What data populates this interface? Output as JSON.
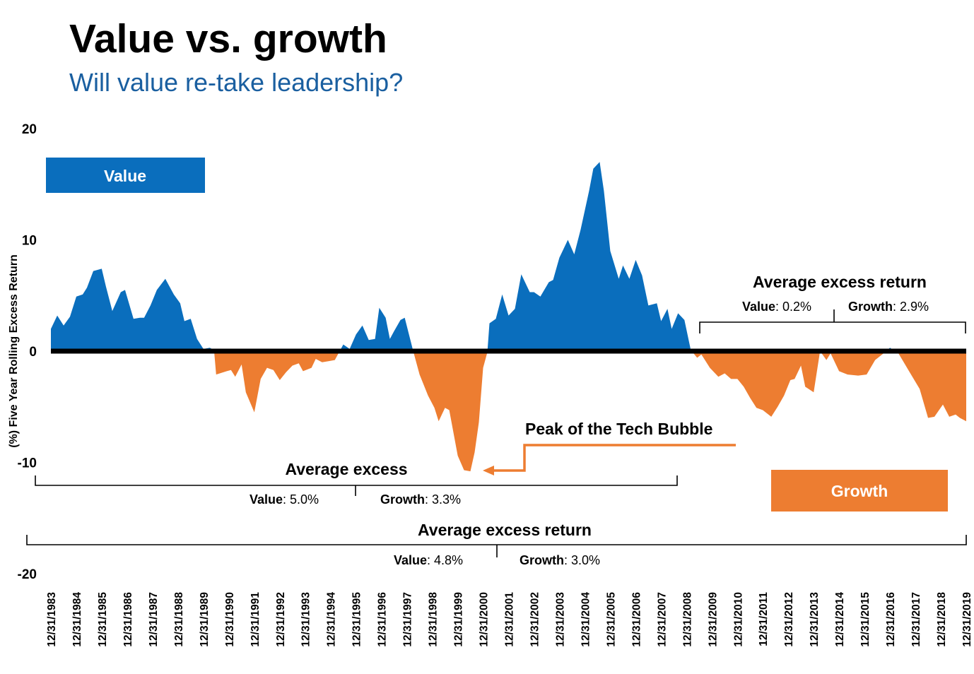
{
  "title": "Value vs. growth",
  "subtitle": "Will value re-take leadership?",
  "colors": {
    "value": "#0a6ebd",
    "growth": "#ed7d31",
    "subtitle": "#1a5fa0",
    "zero_line": "#000000"
  },
  "legend": {
    "value_label": "Value",
    "growth_label": "Growth"
  },
  "annotations": {
    "recent": {
      "heading": "Average excess return",
      "value_key": "Value",
      "value_val": ": 0.2%",
      "growth_key": "Growth",
      "growth_val": ": 2.9%"
    },
    "early": {
      "heading": "Average excess",
      "value_key": "Value",
      "value_val": ": 5.0%",
      "growth_key": "Growth",
      "growth_val": ": 3.3%"
    },
    "full": {
      "heading": "Average excess return",
      "value_key": "Value",
      "value_val": ": 4.8%",
      "growth_key": "Growth",
      "growth_val": ": 3.0%"
    },
    "tech_bubble": "Peak of the Tech Bubble"
  },
  "chart_data": {
    "type": "area",
    "ylabel": "(%) Five Year Rolling Excess Return",
    "ylim": [
      -20,
      20
    ],
    "yticks": [
      "20",
      "10",
      "0",
      "-10",
      "-20"
    ],
    "grid": false,
    "xtick_labels": [
      "12/31/1983",
      "12/31/1984",
      "12/31/1985",
      "12/31/1986",
      "12/31/1987",
      "12/31/1988",
      "12/31/1989",
      "12/31/1990",
      "12/31/1991",
      "12/31/1992",
      "12/31/1993",
      "12/31/1994",
      "12/31/1995",
      "12/31/1996",
      "12/31/1997",
      "12/31/1998",
      "12/31/1999",
      "12/31/2000",
      "12/31/2001",
      "12/31/2002",
      "12/31/2003",
      "12/31/2004",
      "12/31/2005",
      "12/31/2006",
      "12/31/2007",
      "12/31/2008",
      "12/31/2009",
      "12/31/2010",
      "12/31/2011",
      "12/31/2012",
      "12/31/2013",
      "12/31/2014",
      "12/31/2015",
      "12/31/2016",
      "12/31/2017",
      "12/31/2018",
      "12/31/2019"
    ],
    "fill_rule": "positive values shaded Value color, negative values shaded Growth color",
    "x": [
      "1983-12",
      "1984-03",
      "1984-06",
      "1984-09",
      "1984-12",
      "1985-03",
      "1985-05",
      "1985-08",
      "1985-12",
      "1986-02",
      "1986-05",
      "1986-09",
      "1986-11",
      "1987-03",
      "1987-06",
      "1987-08",
      "1987-11",
      "1988-02",
      "1988-06",
      "1988-10",
      "1989-01",
      "1989-03",
      "1989-06",
      "1989-09",
      "1989-12",
      "1990-03",
      "1990-05",
      "1990-06",
      "1990-11",
      "1991-01",
      "1991-03",
      "1991-06",
      "1991-08",
      "1991-12",
      "1992-03",
      "1992-06",
      "1992-09",
      "1992-12",
      "1993-03",
      "1993-06",
      "1993-09",
      "1993-11",
      "1994-03",
      "1994-05",
      "1994-08",
      "1994-11",
      "1995-02",
      "1995-06",
      "1995-09",
      "1995-12",
      "1996-03",
      "1996-06",
      "1996-09",
      "1996-11",
      "1997-02",
      "1997-04",
      "1997-06",
      "1997-09",
      "1997-11",
      "1998-03",
      "1998-06",
      "1998-10",
      "1999-01",
      "1999-03",
      "1999-06",
      "1999-08",
      "1999-12",
      "2000-03",
      "2000-06",
      "2000-08",
      "2000-10",
      "2000-12",
      "2001-02",
      "2001-03",
      "2001-06",
      "2001-09",
      "2001-12",
      "2002-03",
      "2002-06",
      "2002-10",
      "2002-12",
      "2003-03",
      "2003-07",
      "2003-09",
      "2003-12",
      "2004-04",
      "2004-07",
      "2004-10",
      "2005-02",
      "2005-04",
      "2005-07",
      "2005-09",
      "2005-12",
      "2006-04",
      "2006-06",
      "2006-09",
      "2006-12",
      "2007-03",
      "2007-06",
      "2007-10",
      "2007-12",
      "2008-03",
      "2008-05",
      "2008-08",
      "2008-11",
      "2009-02",
      "2009-05",
      "2009-07",
      "2009-11",
      "2010-03",
      "2010-06",
      "2010-09",
      "2010-12",
      "2011-03",
      "2011-06",
      "2011-09",
      "2011-12",
      "2012-04",
      "2012-07",
      "2012-10",
      "2013-01",
      "2013-03",
      "2013-06",
      "2013-08",
      "2013-12",
      "2014-03",
      "2014-06",
      "2014-08",
      "2014-12",
      "2015-04",
      "2015-09",
      "2016-01",
      "2016-05",
      "2016-09",
      "2016-12",
      "2017-04",
      "2017-09",
      "2018-02",
      "2018-06",
      "2018-09",
      "2019-01",
      "2019-04",
      "2019-07",
      "2019-09",
      "2019-12"
    ],
    "y": [
      2.0,
      3.2,
      2.3,
      3.1,
      4.9,
      5.1,
      5.7,
      7.2,
      7.4,
      5.8,
      3.6,
      5.3,
      5.5,
      2.9,
      3.0,
      3.0,
      4.1,
      5.5,
      6.5,
      5.1,
      4.3,
      2.7,
      2.9,
      1.1,
      0.2,
      0.3,
      0.1,
      -2.1,
      -1.8,
      -1.7,
      -2.3,
      -1.2,
      -3.7,
      -5.5,
      -2.5,
      -1.5,
      -1.7,
      -2.6,
      -1.9,
      -1.3,
      -1.1,
      -1.8,
      -1.5,
      -0.7,
      -1.0,
      -0.9,
      -0.8,
      0.6,
      0.2,
      1.5,
      2.3,
      1.0,
      1.1,
      3.9,
      3.0,
      1.1,
      1.8,
      2.8,
      3.0,
      0.0,
      -2.1,
      -4.0,
      -5.1,
      -6.3,
      -5.1,
      -5.3,
      -9.4,
      -10.7,
      -10.8,
      -9.1,
      -6.4,
      -1.5,
      -0.1,
      2.5,
      2.9,
      5.1,
      3.2,
      3.8,
      6.9,
      5.3,
      5.3,
      4.9,
      6.2,
      6.4,
      8.4,
      10.0,
      8.7,
      10.9,
      14.4,
      16.4,
      17.0,
      14.4,
      9.0,
      6.5,
      7.7,
      6.5,
      8.2,
      6.8,
      4.1,
      4.3,
      2.7,
      3.8,
      2.0,
      3.4,
      2.8,
      0.1,
      -0.6,
      -0.3,
      -1.5,
      -2.3,
      -2.0,
      -2.5,
      -2.5,
      -3.2,
      -4.2,
      -5.1,
      -5.3,
      -5.9,
      -5.0,
      -4.0,
      -2.6,
      -2.5,
      -1.3,
      -3.2,
      -3.7,
      0.0,
      -0.8,
      -0.2,
      -1.8,
      -2.1,
      -2.2,
      -2.1,
      -0.8,
      -0.2,
      0.3,
      -0.2,
      -1.8,
      -3.4,
      -6.0,
      -5.9,
      -4.8,
      -5.9,
      -5.7,
      -6.0,
      -6.3
    ]
  }
}
